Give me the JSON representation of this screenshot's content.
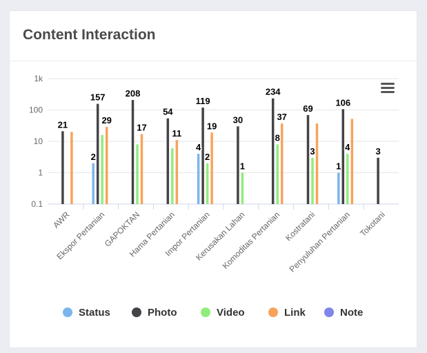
{
  "card": {
    "title": "Content Interaction"
  },
  "chart_data": {
    "type": "bar",
    "y_scale": "log",
    "ylim": [
      0.1,
      1000
    ],
    "y_ticks": [
      {
        "value": 0.1,
        "label": "0.1"
      },
      {
        "value": 1,
        "label": "1"
      },
      {
        "value": 10,
        "label": "10"
      },
      {
        "value": 100,
        "label": "100"
      },
      {
        "value": 1000,
        "label": "1k"
      }
    ],
    "categories": [
      "AWR",
      "Ekspor Pertanian",
      "GAPOKTAN",
      "Hama Pertanian",
      "Impor Pertanian",
      "Kerusakan Lahan",
      "Komoditas Pertanian",
      "Kostratani",
      "Penyuluhan Pertanian",
      "Tokotani"
    ],
    "series": [
      {
        "name": "Status",
        "color": "#7cb5ec",
        "values": [
          null,
          2,
          null,
          null,
          4,
          null,
          null,
          null,
          1,
          null
        ]
      },
      {
        "name": "Photo",
        "color": "#434348",
        "values": [
          21,
          157,
          208,
          54,
          119,
          30,
          234,
          69,
          106,
          3
        ]
      },
      {
        "name": "Video",
        "color": "#90ed7d",
        "values": [
          null,
          16,
          8,
          6,
          2,
          1,
          8,
          3,
          4,
          null
        ]
      },
      {
        "name": "Link",
        "color": "#f7a35c",
        "values": [
          20,
          29,
          17,
          11,
          19,
          null,
          37,
          37,
          52,
          null
        ]
      },
      {
        "name": "Note",
        "color": "#8085e9",
        "values": [
          null,
          null,
          null,
          null,
          null,
          null,
          null,
          null,
          null,
          null
        ]
      }
    ],
    "data_labels": [
      {
        "category": 0,
        "series": 1,
        "text": "21"
      },
      {
        "category": 1,
        "series": 0,
        "text": "2"
      },
      {
        "category": 1,
        "series": 1,
        "text": "157"
      },
      {
        "category": 1,
        "series": 3,
        "text": "29"
      },
      {
        "category": 2,
        "series": 1,
        "text": "208"
      },
      {
        "category": 2,
        "series": 3,
        "text": "17"
      },
      {
        "category": 3,
        "series": 1,
        "text": "54"
      },
      {
        "category": 3,
        "series": 3,
        "text": "11"
      },
      {
        "category": 4,
        "series": 0,
        "text": "4"
      },
      {
        "category": 4,
        "series": 1,
        "text": "119"
      },
      {
        "category": 4,
        "series": 2,
        "text": "2"
      },
      {
        "category": 4,
        "series": 3,
        "text": "19"
      },
      {
        "category": 5,
        "series": 1,
        "text": "30"
      },
      {
        "category": 5,
        "series": 2,
        "text": "1"
      },
      {
        "category": 6,
        "series": 1,
        "text": "234"
      },
      {
        "category": 6,
        "series": 2,
        "text": "8"
      },
      {
        "category": 6,
        "series": 3,
        "text": "37"
      },
      {
        "category": 7,
        "series": 1,
        "text": "69"
      },
      {
        "category": 7,
        "series": 2,
        "text": "3"
      },
      {
        "category": 8,
        "series": 0,
        "text": "1"
      },
      {
        "category": 8,
        "series": 1,
        "text": "106"
      },
      {
        "category": 8,
        "series": 2,
        "text": "4"
      },
      {
        "category": 9,
        "series": 1,
        "text": "3"
      }
    ],
    "legend": {
      "position": "bottom",
      "items": [
        "Status",
        "Photo",
        "Video",
        "Link",
        "Note"
      ]
    },
    "grid": true,
    "menu_icon": "hamburger-menu-icon"
  }
}
